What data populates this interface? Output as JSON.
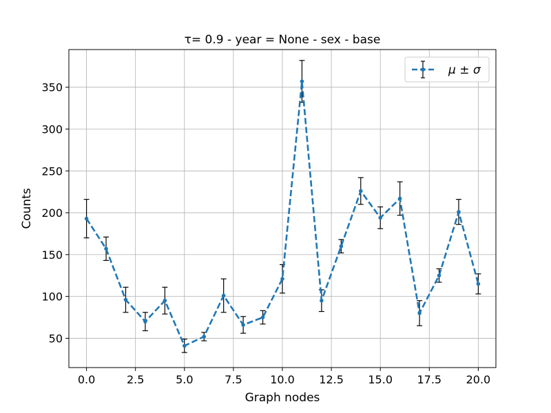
{
  "chart_data": {
    "type": "line",
    "title": "τ= 0.9 - year = None - sex - base",
    "xlabel": "Graph nodes",
    "ylabel": "Counts",
    "xlim": [
      -0.9,
      20.9
    ],
    "ylim": [
      15,
      395
    ],
    "xticks": [
      0.0,
      2.5,
      5.0,
      7.5,
      10.0,
      12.5,
      15.0,
      17.5,
      20.0
    ],
    "xtick_labels": [
      "0.0",
      "2.5",
      "5.0",
      "7.5",
      "10.0",
      "12.5",
      "15.0",
      "17.5",
      "20.0"
    ],
    "yticks": [
      50,
      100,
      150,
      200,
      250,
      300,
      350
    ],
    "ytick_labels": [
      "50",
      "100",
      "150",
      "200",
      "250",
      "300",
      "350"
    ],
    "grid": true,
    "legend_position": "top-right",
    "series": [
      {
        "name": "μ ± σ",
        "color": "#1f77b4",
        "errorbar_color": "#000000",
        "line_style": "dashed",
        "x": [
          0,
          1,
          2,
          3,
          4,
          5,
          6,
          7,
          8,
          9,
          10,
          11,
          12,
          13,
          14,
          15,
          16,
          17,
          18,
          19,
          20
        ],
        "y": [
          193,
          157,
          96,
          70,
          95,
          41,
          52,
          101,
          66,
          75,
          121,
          357,
          95,
          160,
          226,
          194,
          217,
          80,
          125,
          201,
          115
        ],
        "err": [
          23,
          14,
          15,
          11,
          16,
          8,
          5,
          20,
          10,
          8,
          17,
          25,
          13,
          8,
          16,
          13,
          20,
          15,
          8,
          15,
          12
        ]
      }
    ]
  }
}
